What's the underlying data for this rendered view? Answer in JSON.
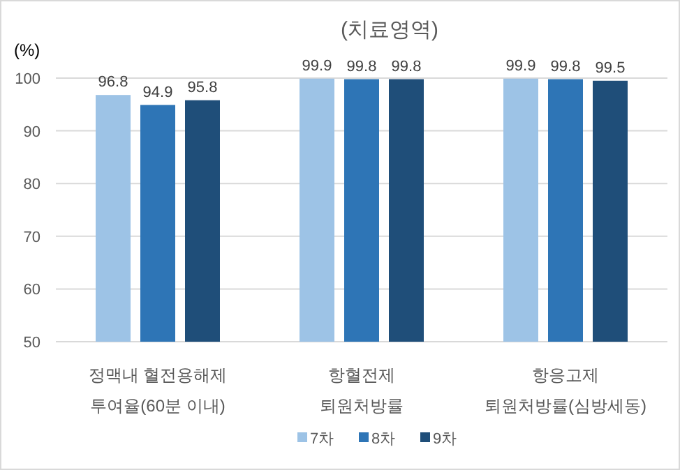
{
  "chart_data": {
    "type": "bar",
    "title": "(치료영역)",
    "ylabel": "(%)",
    "categories": [
      "정맥내 혈전용해제\n투여율(60분 이내)",
      "항혈전제\n퇴원처방률",
      "항응고제\n퇴원처방률(심방세동)"
    ],
    "series": [
      {
        "name": "7차",
        "color": "#9dc3e6",
        "values": [
          96.8,
          99.9,
          99.9
        ]
      },
      {
        "name": "8차",
        "color": "#2e75b6",
        "values": [
          94.9,
          99.8,
          99.8
        ]
      },
      {
        "name": "9차",
        "color": "#1f4e79",
        "values": [
          95.8,
          99.8,
          99.5
        ]
      }
    ],
    "ylim": [
      50,
      100
    ],
    "yticks": [
      50,
      60,
      70,
      80,
      90,
      100
    ],
    "grid": "y",
    "data_labels": true,
    "legend": "bottom"
  }
}
